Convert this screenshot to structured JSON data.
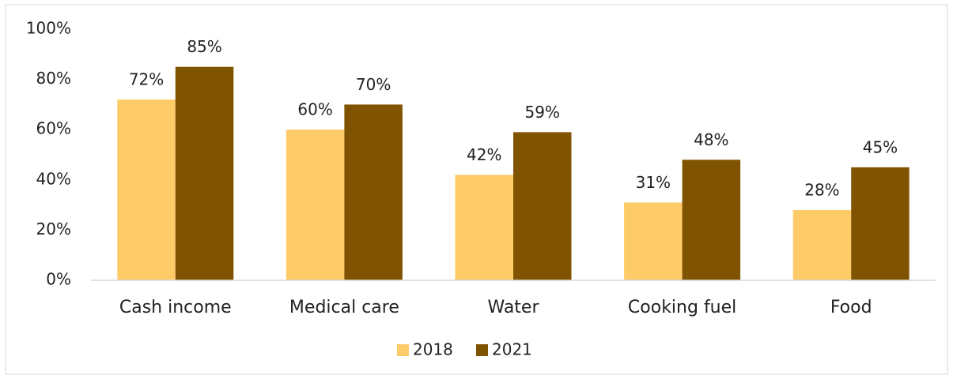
{
  "chart_data": {
    "type": "bar",
    "categories": [
      "Cash income",
      "Medical care",
      "Water",
      "Cooking fuel",
      "Food"
    ],
    "series": [
      {
        "name": "2018",
        "color": "#fecb69",
        "values": [
          72,
          60,
          42,
          31,
          28
        ],
        "value_labels": [
          "72%",
          "60%",
          "42%",
          "31%",
          "28%"
        ]
      },
      {
        "name": "2021",
        "color": "#805300",
        "values": [
          85,
          70,
          59,
          48,
          45
        ],
        "value_labels": [
          "85%",
          "70%",
          "59%",
          "48%",
          "45%"
        ]
      }
    ],
    "ylim": [
      0,
      100
    ],
    "yticks": [
      {
        "value": 0,
        "label": "0%"
      },
      {
        "value": 20,
        "label": "20%"
      },
      {
        "value": 40,
        "label": "40%"
      },
      {
        "value": 60,
        "label": "60%"
      },
      {
        "value": 80,
        "label": "80%"
      },
      {
        "value": 100,
        "label": "100%"
      }
    ],
    "grid": false,
    "legend": "bottom"
  }
}
